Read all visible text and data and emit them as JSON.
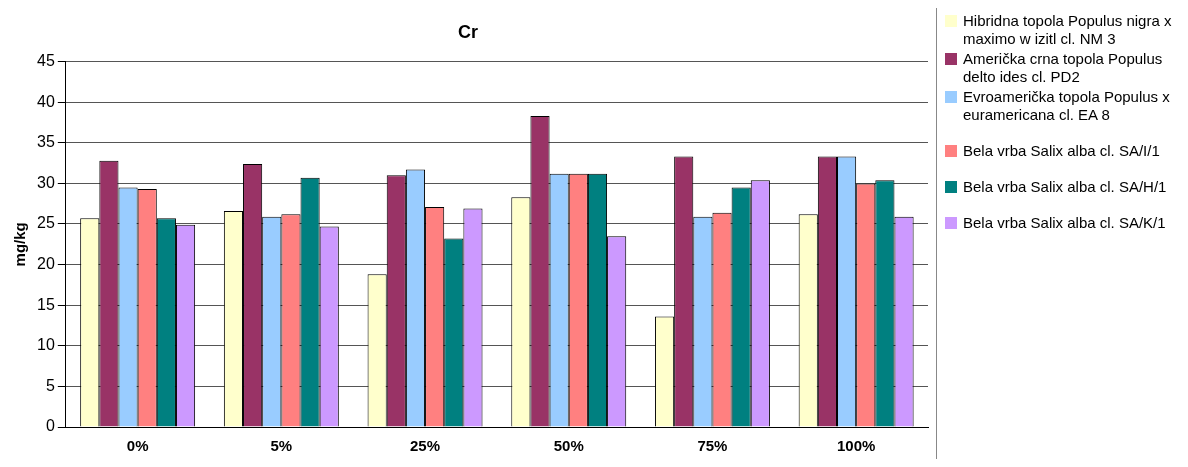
{
  "chart_data": {
    "type": "bar",
    "title": "Cr",
    "ylabel": "mg/kg",
    "categories": [
      "0%",
      "5%",
      "25%",
      "50%",
      "75%",
      "100%"
    ],
    "series": [
      {
        "name": "Hibridna topola Populus nigra x maximo w izitl cl. NM 3",
        "color": "#ffffcc",
        "values": [
          25.7,
          26.6,
          18.8,
          28.3,
          13.6,
          26.2
        ]
      },
      {
        "name": "Američka crna topola Populus delto ides cl. PD2",
        "color": "#993366",
        "values": [
          32.8,
          32.4,
          31.0,
          38.3,
          33.3,
          33.3
        ]
      },
      {
        "name": "Evroamerička topola Populus x euramericana cl. EA 8",
        "color": "#99ccff",
        "values": [
          29.5,
          25.9,
          31.7,
          31.2,
          25.9,
          33.3
        ]
      },
      {
        "name": "Bela vrba Salix alba cl. SA/I/1",
        "color": "#ff8080",
        "values": [
          29.3,
          26.2,
          27.1,
          31.2,
          26.4,
          30.0
        ]
      },
      {
        "name": "Bela vrba Salix alba cl. SA/H/1",
        "color": "#008080",
        "values": [
          25.7,
          30.7,
          23.2,
          31.2,
          29.5,
          30.4
        ]
      },
      {
        "name": "Bela vrba Salix alba cl. SA/K/1",
        "color": "#cc99ff",
        "values": [
          24.9,
          24.7,
          26.9,
          23.5,
          30.4,
          25.9
        ]
      }
    ],
    "ylim": [
      0,
      45
    ],
    "yticks": [
      0,
      5,
      10,
      15,
      20,
      25,
      30,
      35,
      40,
      45
    ],
    "grid": "y",
    "legend": "right"
  }
}
